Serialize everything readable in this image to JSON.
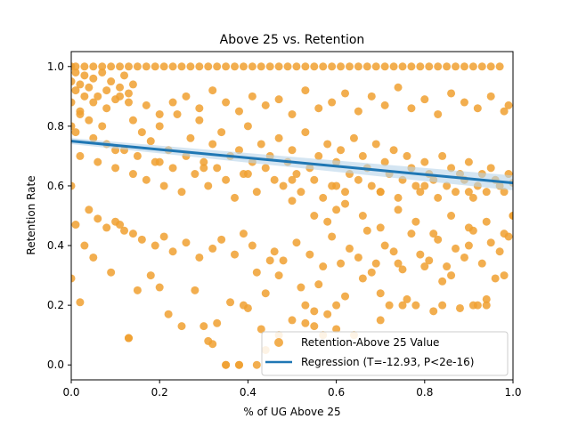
{
  "chart_data": {
    "type": "scatter",
    "title": "Above 25 vs. Retention",
    "xlabel": "% of UG Above 25",
    "ylabel": "Retention Rate",
    "xlim": [
      0,
      1
    ],
    "ylim": [
      -0.05,
      1.05
    ],
    "xticks": [
      "0.0",
      "0.2",
      "0.4",
      "0.6",
      "0.8",
      "1.0"
    ],
    "yticks": [
      "0.0",
      "0.2",
      "0.4",
      "0.6",
      "0.8",
      "1.0"
    ],
    "grid": false,
    "legend_position": "lower-right",
    "colors": {
      "points": "#f0a030",
      "line": "#1f77b4",
      "band": "#b7d4ea"
    },
    "series": [
      {
        "name": "Retention-Above 25 Value",
        "kind": "scatter",
        "x": [
          0.0,
          0.0,
          0.01,
          0.01,
          0.02,
          0.02,
          0.03,
          0.04,
          0.05,
          0.06,
          0.07,
          0.08,
          0.1,
          0.12,
          0.13,
          0.14,
          0.15,
          0.16,
          0.17,
          0.18,
          0.19,
          0.2,
          0.21,
          0.22,
          0.23,
          0.24,
          0.25,
          0.26,
          0.27,
          0.28,
          0.29,
          0.3,
          0.31,
          0.32,
          0.33,
          0.34,
          0.35,
          0.36,
          0.37,
          0.38,
          0.39,
          0.4,
          0.41,
          0.42,
          0.43,
          0.44,
          0.45,
          0.46,
          0.47,
          0.48,
          0.49,
          0.5,
          0.51,
          0.52,
          0.53,
          0.54,
          0.55,
          0.56,
          0.57,
          0.58,
          0.59,
          0.6,
          0.61,
          0.62,
          0.63,
          0.64,
          0.65,
          0.66,
          0.67,
          0.68,
          0.69,
          0.7,
          0.71,
          0.72,
          0.73,
          0.74,
          0.75,
          0.76,
          0.77,
          0.78,
          0.79,
          0.8,
          0.81,
          0.82,
          0.83,
          0.84,
          0.85,
          0.86,
          0.87,
          0.88,
          0.89,
          0.9,
          0.91,
          0.92,
          0.93,
          0.94,
          0.95,
          0.96,
          0.97,
          0.98,
          0.99,
          1.0,
          1.0,
          0.0,
          0.02,
          0.03,
          0.05,
          0.09,
          0.11,
          0.13,
          0.15,
          0.18,
          0.2,
          0.22,
          0.25,
          0.28,
          0.31,
          0.33,
          0.35,
          0.36,
          0.38,
          0.4,
          0.42,
          0.43,
          0.44,
          0.45,
          0.47,
          0.5,
          0.52,
          0.53,
          0.55,
          0.56,
          0.58,
          0.6,
          0.61,
          0.62,
          0.64,
          0.66,
          0.68,
          0.7,
          0.72,
          0.74,
          0.76,
          0.78,
          0.8,
          0.82,
          0.84,
          0.86,
          0.88,
          0.9,
          0.92,
          0.94,
          0.96,
          0.98,
          0.01,
          0.04,
          0.06,
          0.08,
          0.1,
          0.12,
          0.14,
          0.16,
          0.19,
          0.21,
          0.23,
          0.26,
          0.29,
          0.32,
          0.34,
          0.37,
          0.39,
          0.41,
          0.46,
          0.48,
          0.51,
          0.54,
          0.57,
          0.59,
          0.63,
          0.65,
          0.67,
          0.69,
          0.71,
          0.73,
          0.75,
          0.77,
          0.79,
          0.81,
          0.83,
          0.85,
          0.87,
          0.89,
          0.91,
          0.93,
          0.95,
          0.97,
          0.99,
          0.0,
          0.0,
          0.01,
          0.02,
          0.03,
          0.04,
          0.05,
          0.06,
          0.07,
          0.08,
          0.09,
          0.1,
          0.11,
          0.12,
          0.13,
          0.14,
          0.02,
          0.05,
          0.08,
          0.11,
          0.14,
          0.17,
          0.2,
          0.23,
          0.26,
          0.29,
          0.32,
          0.35,
          0.38,
          0.41,
          0.44,
          0.47,
          0.5,
          0.53,
          0.56,
          0.59,
          0.62,
          0.65,
          0.68,
          0.71,
          0.74,
          0.77,
          0.8,
          0.83,
          0.86,
          0.89,
          0.92,
          0.95,
          0.98,
          0.99,
          0.97,
          0.95,
          0.93,
          0.91,
          0.89,
          0.87,
          0.85,
          0.83,
          0.81,
          0.79,
          0.77,
          0.75,
          0.73,
          0.71,
          0.69,
          0.67,
          0.65,
          0.63,
          0.61,
          0.59,
          0.57,
          0.55,
          0.53,
          0.51,
          0.49,
          0.47,
          0.45,
          0.43,
          0.41,
          0.39,
          0.37,
          0.35,
          0.33,
          0.31,
          0.29,
          0.27,
          0.25,
          0.23,
          0.21,
          0.19,
          0.17,
          0.15,
          0.13,
          0.11,
          0.09,
          0.07,
          0.05,
          0.03,
          0.01,
          0.5,
          0.55,
          0.6,
          0.58,
          0.62,
          0.66,
          0.7,
          0.74,
          0.78,
          0.82,
          0.86,
          0.9,
          0.94,
          0.98,
          0.13,
          0.3,
          0.32,
          0.35,
          0.38,
          0.42,
          0.44,
          0.47,
          0.53,
          0.55,
          0.39,
          0.57,
          0.6,
          0.7,
          0.75,
          0.84,
          0.91,
          0.94,
          1.0,
          0.0,
          0.1,
          0.2,
          0.3,
          0.4,
          0.5,
          0.6,
          0.7,
          0.8,
          0.9
        ],
        "y": [
          0.95,
          0.88,
          0.92,
          0.78,
          0.85,
          0.7,
          0.9,
          0.82,
          0.76,
          0.68,
          0.8,
          0.74,
          0.66,
          0.72,
          0.88,
          0.64,
          0.7,
          0.78,
          0.62,
          0.75,
          0.68,
          0.8,
          0.6,
          0.72,
          0.66,
          0.84,
          0.58,
          0.7,
          0.76,
          0.64,
          0.82,
          0.68,
          0.6,
          0.74,
          0.66,
          0.78,
          0.62,
          0.7,
          0.56,
          0.72,
          0.64,
          0.8,
          0.68,
          0.58,
          0.74,
          0.66,
          0.7,
          0.62,
          0.76,
          0.6,
          0.68,
          0.72,
          0.64,
          0.58,
          0.78,
          0.66,
          0.62,
          0.7,
          0.56,
          0.74,
          0.6,
          0.68,
          0.72,
          0.58,
          0.64,
          0.76,
          0.62,
          0.7,
          0.66,
          0.6,
          0.74,
          0.58,
          0.68,
          0.64,
          0.72,
          0.56,
          0.62,
          0.7,
          0.66,
          0.6,
          0.58,
          0.68,
          0.64,
          0.62,
          0.56,
          0.7,
          0.6,
          0.66,
          0.58,
          0.64,
          0.62,
          0.68,
          0.56,
          0.6,
          0.64,
          0.58,
          0.66,
          0.62,
          0.6,
          0.58,
          0.64,
          0.61,
          0.5,
          0.29,
          0.21,
          0.4,
          0.36,
          0.31,
          0.47,
          0.09,
          0.25,
          0.3,
          0.26,
          0.17,
          0.13,
          0.25,
          0.08,
          0.14,
          0.0,
          0.21,
          0.0,
          0.19,
          0.31,
          0.12,
          0.24,
          0.35,
          0.3,
          0.15,
          0.26,
          0.2,
          0.13,
          0.27,
          0.17,
          0.2,
          0.34,
          0.23,
          0.1,
          0.29,
          0.31,
          0.24,
          0.2,
          0.34,
          0.22,
          0.2,
          0.33,
          0.18,
          0.28,
          0.3,
          0.19,
          0.4,
          0.2,
          0.22,
          0.29,
          0.3,
          0.47,
          0.52,
          0.49,
          0.46,
          0.48,
          0.45,
          0.44,
          0.42,
          0.4,
          0.43,
          0.38,
          0.41,
          0.36,
          0.39,
          0.42,
          0.37,
          0.44,
          0.4,
          0.38,
          0.35,
          0.41,
          0.37,
          0.33,
          0.43,
          0.39,
          0.36,
          0.45,
          0.34,
          0.4,
          0.38,
          0.32,
          0.44,
          0.37,
          0.35,
          0.42,
          0.33,
          0.39,
          0.36,
          0.45,
          0.34,
          0.41,
          0.38,
          0.43,
          1.0,
          0.6,
          0.98,
          0.94,
          0.97,
          0.93,
          0.96,
          0.9,
          0.98,
          0.92,
          0.95,
          0.89,
          0.93,
          0.97,
          0.91,
          0.94,
          0.84,
          0.88,
          0.86,
          0.9,
          0.82,
          0.87,
          0.84,
          0.88,
          0.9,
          0.86,
          0.92,
          0.88,
          0.85,
          0.9,
          0.87,
          0.89,
          0.84,
          0.92,
          0.86,
          0.88,
          0.91,
          0.85,
          0.9,
          0.87,
          0.93,
          0.86,
          0.89,
          0.84,
          0.91,
          0.88,
          0.86,
          0.9,
          0.85,
          0.87,
          1.0,
          1.0,
          1.0,
          1.0,
          1.0,
          1.0,
          1.0,
          1.0,
          1.0,
          1.0,
          1.0,
          1.0,
          1.0,
          1.0,
          1.0,
          1.0,
          1.0,
          1.0,
          1.0,
          1.0,
          1.0,
          1.0,
          1.0,
          1.0,
          1.0,
          1.0,
          1.0,
          1.0,
          1.0,
          1.0,
          1.0,
          1.0,
          1.0,
          1.0,
          1.0,
          1.0,
          1.0,
          1.0,
          1.0,
          1.0,
          1.0,
          1.0,
          1.0,
          1.0,
          1.0,
          1.0,
          1.0,
          1.0,
          1.0,
          0.55,
          0.5,
          0.52,
          0.48,
          0.54,
          0.5,
          0.46,
          0.52,
          0.48,
          0.44,
          0.5,
          0.46,
          0.48,
          0.44,
          0.09,
          0.13,
          0.07,
          0.0,
          0.0,
          0.0,
          0.05,
          0.1,
          0.14,
          0.18,
          0.2,
          0.1,
          0.12,
          0.15,
          0.2,
          0.2,
          0.2,
          0.2,
          0.5,
          0.8,
          0.72,
          0.68,
          0.66,
          0.64,
          0.62,
          0.6,
          0.58,
          0.6,
          0.58
        ]
      },
      {
        "name": "Regression (T=-12.93, P<2e-16)",
        "kind": "line",
        "x": [
          0.0,
          1.0
        ],
        "y": [
          0.75,
          0.61
        ],
        "ci_low": [
          0.74,
          0.585
        ],
        "ci_high": [
          0.76,
          0.635
        ]
      }
    ]
  }
}
